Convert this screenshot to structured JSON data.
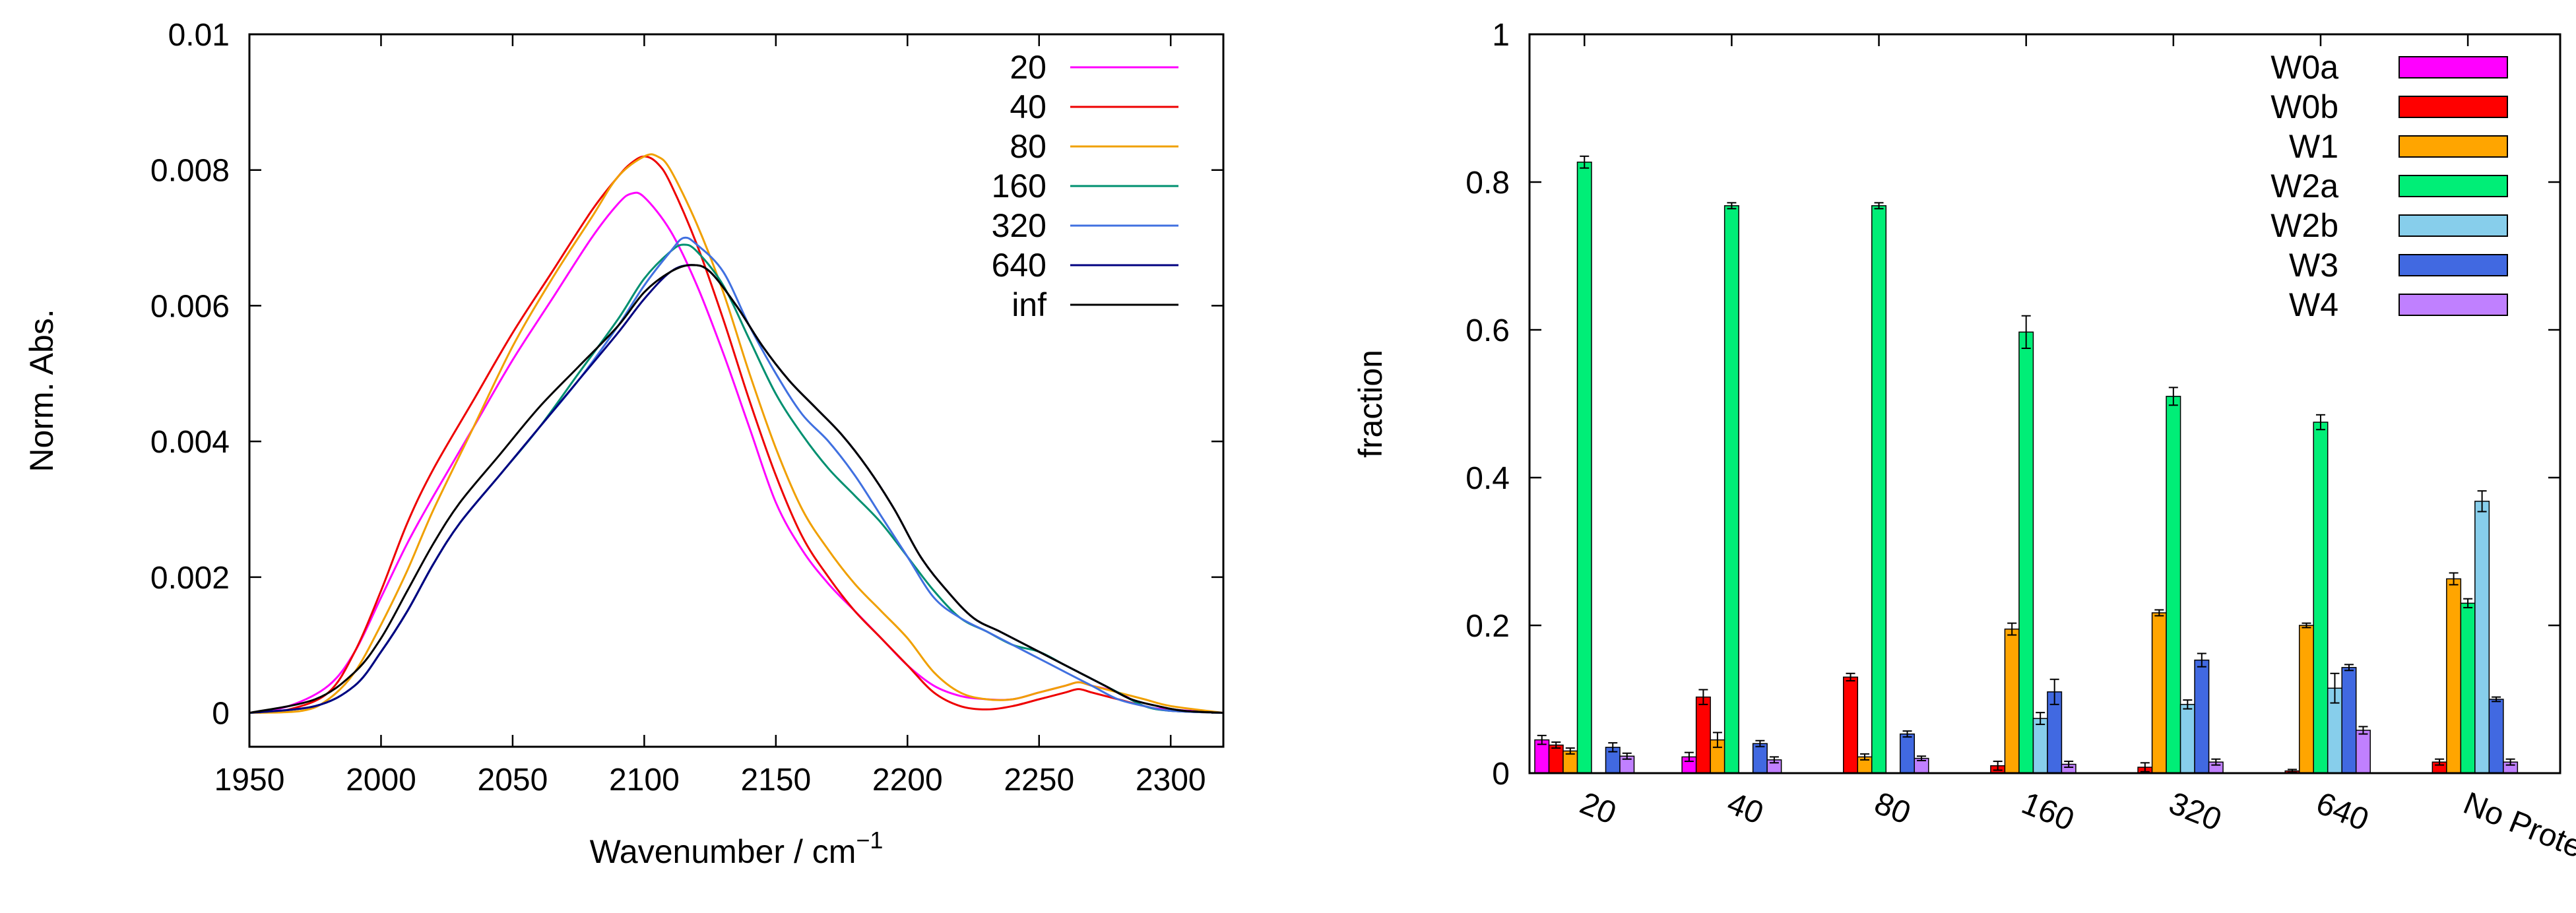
{
  "chart_data": [
    {
      "type": "line",
      "title": "",
      "xlabel": "Wavenumber / cm",
      "xlabel_superscript": "−1",
      "ylabel": "Norm. Abs.",
      "xlim": [
        1950,
        2320
      ],
      "ylim": [
        -0.0005,
        0.01
      ],
      "xticks": [
        1950,
        2000,
        2050,
        2100,
        2150,
        2200,
        2250,
        2300
      ],
      "yticks": [
        0,
        0.002,
        0.004,
        0.006,
        0.008,
        0.01
      ],
      "ytick_labels": [
        "0",
        "0.002",
        "0.004",
        "0.006",
        "0.008",
        "0.01"
      ],
      "legend_position": "top-right",
      "series": [
        {
          "name": "20",
          "color": "#ff00ff",
          "x": [
            1950,
            1965,
            1980,
            1990,
            2000,
            2010,
            2020,
            2035,
            2050,
            2065,
            2080,
            2090,
            2095,
            2100,
            2110,
            2120,
            2130,
            2140,
            2150,
            2160,
            2170,
            2180,
            2190,
            2200,
            2210,
            2220,
            2230,
            2240,
            2250,
            2260,
            2265,
            2270,
            2280,
            2290,
            2300,
            2320
          ],
          "y": [
            0.0,
            0.0001,
            0.0004,
            0.0009,
            0.0017,
            0.0025,
            0.0032,
            0.0042,
            0.0052,
            0.0061,
            0.007,
            0.0075,
            0.00765,
            0.0076,
            0.0071,
            0.0063,
            0.0053,
            0.0042,
            0.0031,
            0.0024,
            0.0019,
            0.0015,
            0.0011,
            0.0007,
            0.0004,
            0.00025,
            0.0002,
            0.0002,
            0.0003,
            0.0004,
            0.00045,
            0.0004,
            0.0003,
            0.0001,
            5e-05,
            0.0
          ]
        },
        {
          "name": "40",
          "color": "#ee0000",
          "x": [
            1950,
            1965,
            1980,
            1990,
            2000,
            2010,
            2020,
            2035,
            2050,
            2065,
            2080,
            2090,
            2095,
            2100,
            2105,
            2110,
            2120,
            2130,
            2140,
            2150,
            2160,
            2170,
            2180,
            2190,
            2200,
            2210,
            2220,
            2230,
            2240,
            2250,
            2260,
            2265,
            2270,
            2280,
            2290,
            2300,
            2320
          ],
          "y": [
            0.0,
            5e-05,
            0.0003,
            0.0009,
            0.0018,
            0.0028,
            0.0036,
            0.0046,
            0.0056,
            0.0065,
            0.0074,
            0.0079,
            0.0081,
            0.0082,
            0.0081,
            0.0078,
            0.0069,
            0.0058,
            0.0046,
            0.0035,
            0.0026,
            0.002,
            0.0015,
            0.0011,
            0.0007,
            0.0003,
            0.0001,
            5e-05,
            0.0001,
            0.0002,
            0.0003,
            0.00035,
            0.0003,
            0.0002,
            0.0001,
            3e-05,
            0.0
          ]
        },
        {
          "name": "80",
          "color": "#f0a000",
          "x": [
            1950,
            1970,
            1980,
            1990,
            2000,
            2010,
            2020,
            2035,
            2050,
            2065,
            2080,
            2090,
            2100,
            2105,
            2110,
            2120,
            2130,
            2140,
            2150,
            2160,
            2170,
            2180,
            2190,
            2200,
            2210,
            2220,
            2230,
            2240,
            2250,
            2260,
            2265,
            2270,
            2280,
            2290,
            2300,
            2320
          ],
          "y": [
            0.0,
            3e-05,
            0.0002,
            0.0006,
            0.0013,
            0.0021,
            0.003,
            0.0042,
            0.0054,
            0.0064,
            0.0073,
            0.0079,
            0.0082,
            0.0082,
            0.008,
            0.0072,
            0.0062,
            0.005,
            0.0039,
            0.003,
            0.0024,
            0.0019,
            0.0015,
            0.0011,
            0.0006,
            0.0003,
            0.0002,
            0.0002,
            0.0003,
            0.0004,
            0.00045,
            0.0004,
            0.0003,
            0.0002,
            0.0001,
            0.0
          ]
        },
        {
          "name": "160",
          "color": "#009070",
          "x": [
            1950,
            1975,
            1990,
            2000,
            2010,
            2020,
            2030,
            2045,
            2060,
            2075,
            2090,
            2100,
            2110,
            2115,
            2120,
            2130,
            2140,
            2150,
            2160,
            2170,
            2180,
            2190,
            2200,
            2210,
            2220,
            2230,
            2240,
            2250,
            2260,
            2270,
            2280,
            2290,
            2300,
            2320
          ],
          "y": [
            0.0,
            0.0001,
            0.0004,
            0.0009,
            0.0015,
            0.0022,
            0.0028,
            0.0035,
            0.0042,
            0.005,
            0.0058,
            0.0064,
            0.0068,
            0.0069,
            0.0068,
            0.0063,
            0.0055,
            0.0047,
            0.0041,
            0.0036,
            0.0032,
            0.0028,
            0.0023,
            0.0018,
            0.0014,
            0.0012,
            0.001,
            0.0009,
            0.0007,
            0.0005,
            0.0003,
            0.0001,
            3e-05,
            0.0
          ]
        },
        {
          "name": "320",
          "color": "#4070e0",
          "x": [
            1950,
            1975,
            1990,
            2000,
            2010,
            2020,
            2030,
            2045,
            2060,
            2075,
            2090,
            2100,
            2110,
            2115,
            2120,
            2130,
            2140,
            2150,
            2160,
            2170,
            2180,
            2190,
            2200,
            2210,
            2220,
            2230,
            2240,
            2250,
            2260,
            2270,
            2280,
            2290,
            2300,
            2320
          ],
          "y": [
            0.0,
            0.0001,
            0.0004,
            0.0009,
            0.0015,
            0.0022,
            0.0028,
            0.0035,
            0.0042,
            0.0049,
            0.0057,
            0.0063,
            0.0068,
            0.007,
            0.0069,
            0.0065,
            0.0057,
            0.005,
            0.0044,
            0.004,
            0.0035,
            0.0029,
            0.0023,
            0.0017,
            0.0014,
            0.0012,
            0.001,
            0.0008,
            0.0006,
            0.0004,
            0.0002,
            0.0001,
            3e-05,
            0.0
          ]
        },
        {
          "name": "640",
          "color": "#000080",
          "x": [
            1950,
            1975,
            1990,
            2000,
            2010,
            2020,
            2030,
            2045,
            2060,
            2075,
            2090,
            2100,
            2110,
            2118,
            2125,
            2135,
            2145,
            2155,
            2165,
            2175,
            2185,
            2195,
            2205,
            2215,
            2225,
            2235,
            2245,
            2255,
            2265,
            2275,
            2285,
            2295,
            2305,
            2320
          ],
          "y": [
            0.0,
            0.0001,
            0.0004,
            0.0009,
            0.0015,
            0.0022,
            0.0028,
            0.0035,
            0.0042,
            0.0049,
            0.0056,
            0.0061,
            0.0065,
            0.0066,
            0.0065,
            0.006,
            0.0054,
            0.0049,
            0.0045,
            0.0041,
            0.0036,
            0.003,
            0.0023,
            0.0018,
            0.0014,
            0.0012,
            0.001,
            0.0008,
            0.0006,
            0.0004,
            0.0002,
            0.0001,
            3e-05,
            0.0
          ]
        },
        {
          "name": "inf",
          "color": "#000000",
          "x": [
            1950,
            1975,
            1990,
            2000,
            2010,
            2020,
            2030,
            2045,
            2060,
            2075,
            2090,
            2100,
            2110,
            2118,
            2125,
            2135,
            2145,
            2155,
            2165,
            2175,
            2185,
            2195,
            2205,
            2215,
            2225,
            2235,
            2245,
            2255,
            2265,
            2275,
            2285,
            2295,
            2305,
            2320
          ],
          "y": [
            0.0,
            0.0002,
            0.0006,
            0.0011,
            0.0018,
            0.0025,
            0.0031,
            0.0038,
            0.0045,
            0.0051,
            0.0057,
            0.0062,
            0.0065,
            0.0066,
            0.0065,
            0.006,
            0.0054,
            0.0049,
            0.0045,
            0.0041,
            0.0036,
            0.003,
            0.0023,
            0.0018,
            0.0014,
            0.0012,
            0.001,
            0.0008,
            0.0006,
            0.0004,
            0.0002,
            0.0001,
            3e-05,
            0.0
          ]
        }
      ]
    },
    {
      "type": "bar",
      "title": "",
      "xlabel": "",
      "ylabel": "fraction",
      "ylim": [
        0,
        1
      ],
      "yticks": [
        0,
        0.2,
        0.4,
        0.6,
        0.8,
        1
      ],
      "ytick_labels": [
        "0",
        "0.2",
        "0.4",
        "0.6",
        "0.8",
        "1"
      ],
      "legend_position": "top-right",
      "categories": [
        "20",
        "40",
        "80",
        "160",
        "320",
        "640",
        "No Protein"
      ],
      "series": [
        {
          "name": "W0a",
          "color": "#ff00ff",
          "values": [
            0.045,
            0.022,
            0.0,
            0.0,
            0.0,
            0.0,
            0.0
          ],
          "errors": [
            0.006,
            0.006,
            0,
            0,
            0,
            0,
            0
          ]
        },
        {
          "name": "W0b",
          "color": "#ff0000",
          "values": [
            0.038,
            0.103,
            0.13,
            0.01,
            0.008,
            0.003,
            0.015
          ],
          "errors": [
            0.004,
            0.01,
            0.005,
            0.006,
            0.006,
            0.002,
            0.004
          ]
        },
        {
          "name": "W1",
          "color": "#ffa500",
          "values": [
            0.03,
            0.045,
            0.022,
            0.195,
            0.217,
            0.2,
            0.263
          ],
          "errors": [
            0.004,
            0.01,
            0.004,
            0.008,
            0.004,
            0.003,
            0.008
          ]
        },
        {
          "name": "W2a",
          "color": "#00ee77",
          "values": [
            0.827,
            0.768,
            0.768,
            0.597,
            0.51,
            0.475,
            0.23
          ],
          "errors": [
            0.008,
            0.004,
            0.004,
            0.022,
            0.012,
            0.01,
            0.006
          ]
        },
        {
          "name": "W2b",
          "color": "#87ceeb",
          "values": [
            0.0,
            0.0,
            0.0,
            0.074,
            0.093,
            0.115,
            0.368
          ],
          "errors": [
            0,
            0,
            0,
            0.008,
            0.006,
            0.02,
            0.014
          ]
        },
        {
          "name": "W3",
          "color": "#4169e1",
          "values": [
            0.035,
            0.04,
            0.053,
            0.11,
            0.153,
            0.143,
            0.1
          ],
          "errors": [
            0.006,
            0.004,
            0.004,
            0.017,
            0.009,
            0.004,
            0.003
          ]
        },
        {
          "name": "W4",
          "color": "#c080ff",
          "values": [
            0.023,
            0.018,
            0.02,
            0.012,
            0.015,
            0.058,
            0.015
          ],
          "errors": [
            0.004,
            0.004,
            0.003,
            0.004,
            0.004,
            0.005,
            0.004
          ]
        }
      ]
    }
  ]
}
